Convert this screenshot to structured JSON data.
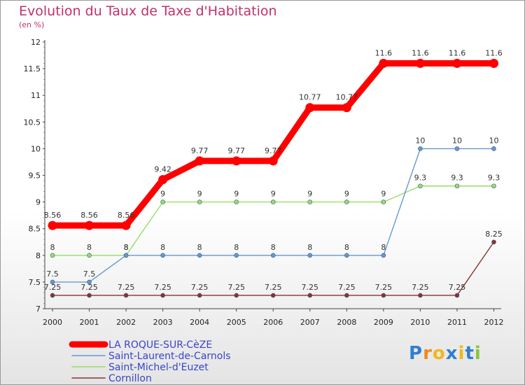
{
  "header": {
    "title": "Evolution du Taux de Taxe d'Habitation",
    "subtitle": "(en %)"
  },
  "logo": {
    "text": "Proxiti",
    "letters": [
      "P",
      "r",
      "o",
      "x",
      "i",
      "t",
      "i"
    ],
    "colors": [
      "#2f7fd0",
      "#f08a1c",
      "#f0b81c",
      "#2f7fd0",
      "#f0b81c",
      "#2f7fd0",
      "#8ac43f"
    ]
  },
  "chart_data": {
    "type": "line",
    "title": "Evolution du Taux de Taxe d'Habitation",
    "subtitle": "(en %)",
    "xlabel": "",
    "ylabel": "",
    "x": [
      "2000",
      "2001",
      "2002",
      "2003",
      "2004",
      "2005",
      "2006",
      "2007",
      "2008",
      "2009",
      "2010",
      "2011",
      "2012"
    ],
    "ylim": [
      7,
      12
    ],
    "yticks": [
      "7",
      "7.5",
      "8",
      "8.5",
      "9",
      "9.5",
      "10",
      "10.5",
      "11",
      "11.5",
      "12"
    ],
    "grid": false,
    "legend_position": "bottom-left",
    "series": [
      {
        "name": "LA ROQUE-SUR-CèZE",
        "color": "#ff0000",
        "values": [
          8.56,
          8.56,
          8.56,
          9.42,
          9.77,
          9.77,
          9.77,
          10.77,
          10.77,
          11.6,
          11.6,
          11.6,
          11.6
        ],
        "labels": [
          "8.56",
          "8.56",
          "8.56",
          "9.42",
          "9.77",
          "9.77",
          "9.77",
          "10.77",
          "10.77",
          "11.6",
          "11.6",
          "11.6",
          "11.6"
        ]
      },
      {
        "name": "Saint-Laurent-de-Carnols",
        "color": "#6699cc",
        "values": [
          7.5,
          7.5,
          8,
          8,
          8,
          8,
          8,
          8,
          8,
          8,
          10,
          10,
          10
        ],
        "labels": [
          "7.5",
          "7.5",
          "8",
          "8",
          "8",
          "8",
          "8",
          "8",
          "8",
          "8",
          "10",
          "10",
          "10"
        ]
      },
      {
        "name": "Saint-Michel-d'Euzet",
        "color": "#99dd66",
        "values": [
          8,
          8,
          8,
          9,
          9,
          9,
          9,
          9,
          9,
          9,
          9.3,
          9.3,
          9.3
        ],
        "labels": [
          "8",
          "8",
          "8",
          "9",
          "9",
          "9",
          "9",
          "9",
          "9",
          "9",
          "9.3",
          "9.3",
          "9.3"
        ]
      },
      {
        "name": "Cornillon",
        "color": "#883333",
        "values": [
          7.25,
          7.25,
          7.25,
          7.25,
          7.25,
          7.25,
          7.25,
          7.25,
          7.25,
          7.25,
          7.25,
          7.25,
          8.25
        ],
        "labels": [
          "7.25",
          "7.25",
          "7.25",
          "7.25",
          "7.25",
          "7.25",
          "7.25",
          "7.25",
          "7.25",
          "7.25",
          "7.25",
          "7.25",
          "8.25"
        ]
      }
    ]
  }
}
